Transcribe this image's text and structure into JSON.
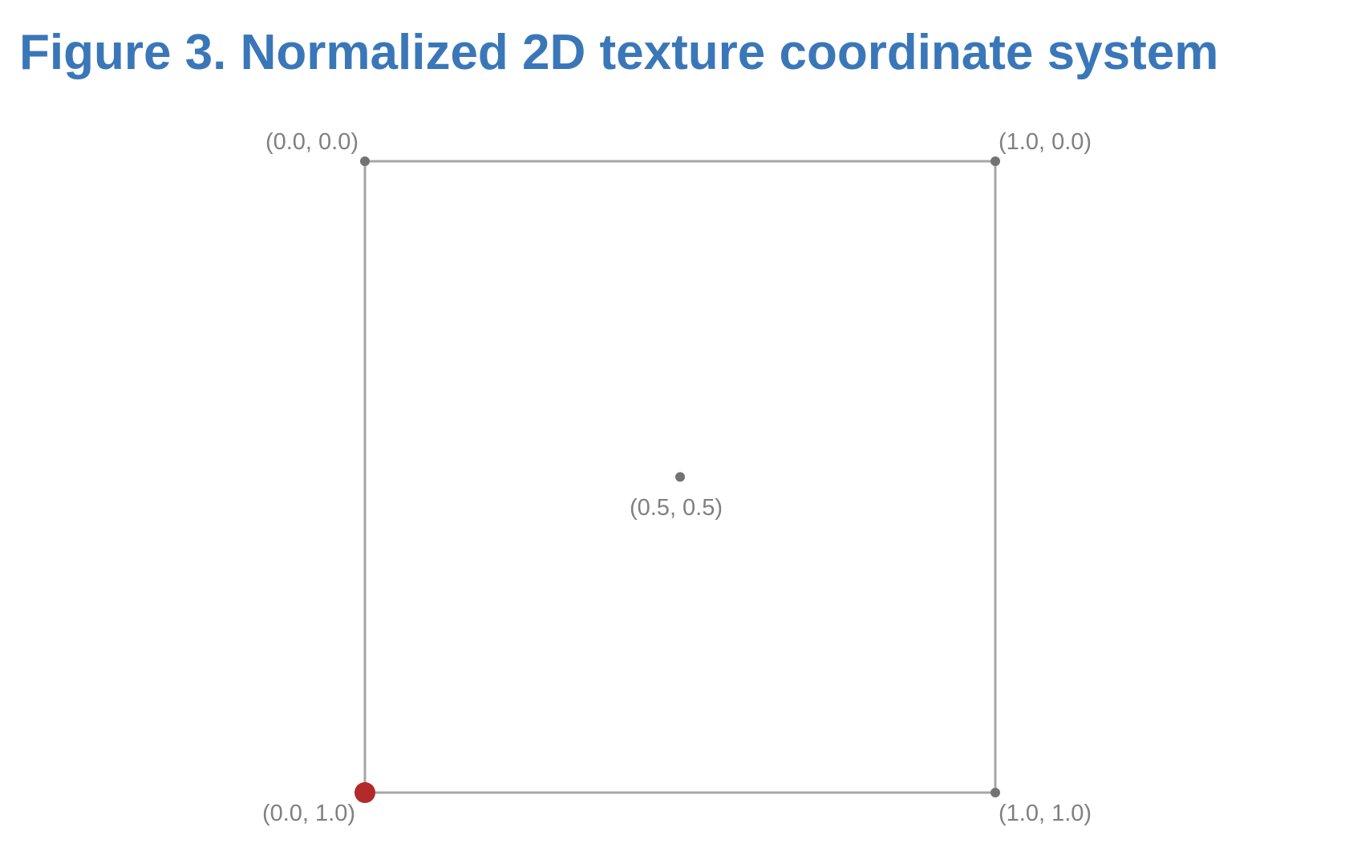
{
  "figure": {
    "title": "Figure 3. Normalized 2D texture coordinate system"
  },
  "points": [
    {
      "id": "top-left",
      "u": 0.0,
      "v": 0.0,
      "label": "(0.0, 0.0)",
      "highlight": false
    },
    {
      "id": "top-right",
      "u": 1.0,
      "v": 0.0,
      "label": "(1.0, 0.0)",
      "highlight": false
    },
    {
      "id": "center",
      "u": 0.5,
      "v": 0.5,
      "label": "(0.5, 0.5)",
      "highlight": false
    },
    {
      "id": "bottom-left",
      "u": 0.0,
      "v": 1.0,
      "label": "(0.0, 1.0)",
      "highlight": true
    },
    {
      "id": "bottom-right",
      "u": 1.0,
      "v": 1.0,
      "label": "(1.0, 1.0)",
      "highlight": false
    }
  ],
  "colors": {
    "title": "#3A77B8",
    "border": "#A6A6A6",
    "point": "#737373",
    "label": "#808080",
    "highlight": "#B22A2A"
  }
}
